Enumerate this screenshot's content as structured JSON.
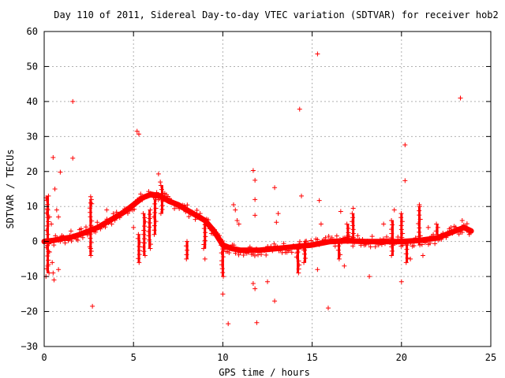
{
  "chart_data": {
    "type": "scatter",
    "title": "Day 110 of 2011, Sidereal Day-to-day VTEC variation (SDTVAR) for receiver hob2",
    "xlabel": "GPS time / hours",
    "ylabel": "SDTVAR / TECUs",
    "xlim": [
      0,
      25
    ],
    "ylim": [
      -30,
      60
    ],
    "x_ticks": [
      "0",
      "5",
      "10",
      "15",
      "20",
      "25"
    ],
    "y_ticks": [
      "60",
      "50",
      "40",
      "30",
      "20",
      "10",
      "0",
      "−10",
      "−20",
      "−30"
    ],
    "grid": true,
    "legend": "none",
    "marker": "+",
    "marker_color": "#ff0000",
    "trend": [
      [
        0.0,
        0.0
      ],
      [
        0.5,
        0.3
      ],
      [
        1.0,
        0.8
      ],
      [
        1.5,
        1.2
      ],
      [
        2.0,
        2.0
      ],
      [
        2.5,
        3.0
      ],
      [
        3.0,
        4.0
      ],
      [
        3.5,
        5.5
      ],
      [
        4.0,
        7.0
      ],
      [
        4.5,
        8.5
      ],
      [
        5.0,
        10.5
      ],
      [
        5.5,
        12.5
      ],
      [
        6.0,
        13.5
      ],
      [
        6.5,
        13.0
      ],
      [
        7.0,
        11.5
      ],
      [
        7.5,
        10.5
      ],
      [
        8.0,
        9.0
      ],
      [
        8.5,
        7.5
      ],
      [
        9.0,
        6.0
      ],
      [
        9.5,
        3.0
      ],
      [
        10.0,
        -1.0
      ],
      [
        10.5,
        -2.0
      ],
      [
        11.0,
        -2.5
      ],
      [
        12.0,
        -2.5
      ],
      [
        13.0,
        -2.0
      ],
      [
        14.0,
        -1.5
      ],
      [
        15.0,
        -1.0
      ],
      [
        16.0,
        0.0
      ],
      [
        17.0,
        0.2
      ],
      [
        18.0,
        0.0
      ],
      [
        19.0,
        0.0
      ],
      [
        20.0,
        0.0
      ],
      [
        21.0,
        0.3
      ],
      [
        22.0,
        1.0
      ],
      [
        23.0,
        3.0
      ],
      [
        23.5,
        4.0
      ],
      [
        23.9,
        3.0
      ]
    ],
    "spikes": [
      {
        "x": 5.3,
        "from": 2,
        "to": -6
      },
      {
        "x": 5.6,
        "from": 8,
        "to": -4
      },
      {
        "x": 5.9,
        "from": 9,
        "to": -2
      },
      {
        "x": 6.2,
        "from": 12,
        "to": 2
      },
      {
        "x": 6.6,
        "from": 16,
        "to": 8
      },
      {
        "x": 8.0,
        "from": 0,
        "to": -5
      },
      {
        "x": 9.0,
        "from": 6,
        "to": -2
      },
      {
        "x": 10.0,
        "from": -1,
        "to": -10
      },
      {
        "x": 14.2,
        "from": -1,
        "to": -9
      },
      {
        "x": 14.6,
        "from": 0,
        "to": -6
      },
      {
        "x": 16.5,
        "from": 0,
        "to": -5
      },
      {
        "x": 17.0,
        "from": 5,
        "to": 0
      },
      {
        "x": 17.3,
        "from": 8,
        "to": 0
      },
      {
        "x": 19.5,
        "from": 6,
        "to": -4
      },
      {
        "x": 20.0,
        "from": 8,
        "to": 0
      },
      {
        "x": 20.3,
        "from": -1,
        "to": -6
      },
      {
        "x": 21.0,
        "from": 10,
        "to": -1
      },
      {
        "x": 22.0,
        "from": 5,
        "to": 2
      },
      {
        "x": 0.2,
        "from": 13,
        "to": -9
      },
      {
        "x": 2.6,
        "from": 12,
        "to": -4
      }
    ],
    "outliers": [
      [
        0.1,
        12.5
      ],
      [
        0.2,
        9.0
      ],
      [
        0.3,
        7.0
      ],
      [
        0.4,
        5.0
      ],
      [
        0.45,
        -6.0
      ],
      [
        0.5,
        -9.0
      ],
      [
        0.55,
        -11.0
      ],
      [
        0.5,
        24.0
      ],
      [
        0.6,
        15.0
      ],
      [
        0.7,
        9.0
      ],
      [
        0.8,
        7.0
      ],
      [
        0.9,
        19.8
      ],
      [
        1.0,
        0.5
      ],
      [
        0.2,
        -7.0
      ],
      [
        0.1,
        -10.0
      ],
      [
        0.3,
        -3.0
      ],
      [
        0.8,
        -8.0
      ],
      [
        1.6,
        40.0
      ],
      [
        1.6,
        23.8
      ],
      [
        1.5,
        3.0
      ],
      [
        2.6,
        12.8
      ],
      [
        2.6,
        11.0
      ],
      [
        2.7,
        -18.5
      ],
      [
        2.6,
        -2.0
      ],
      [
        3.5,
        9.0
      ],
      [
        5.2,
        31.5
      ],
      [
        5.3,
        30.7
      ],
      [
        5.0,
        4.0
      ],
      [
        6.4,
        19.3
      ],
      [
        6.5,
        17.0
      ],
      [
        9.0,
        -5.0
      ],
      [
        10.0,
        -15.0
      ],
      [
        10.3,
        -23.5
      ],
      [
        10.6,
        10.5
      ],
      [
        10.7,
        9.0
      ],
      [
        10.8,
        6.0
      ],
      [
        10.9,
        5.0
      ],
      [
        11.7,
        20.3
      ],
      [
        11.8,
        17.5
      ],
      [
        11.8,
        7.5
      ],
      [
        11.7,
        -12.0
      ],
      [
        11.8,
        -13.5
      ],
      [
        11.9,
        -23.2
      ],
      [
        11.8,
        12.0
      ],
      [
        12.5,
        -11.5
      ],
      [
        12.9,
        15.4
      ],
      [
        12.9,
        -17.0
      ],
      [
        13.0,
        5.5
      ],
      [
        13.1,
        8.0
      ],
      [
        14.3,
        37.8
      ],
      [
        14.4,
        13.0
      ],
      [
        14.2,
        -3.0
      ],
      [
        15.3,
        53.6
      ],
      [
        15.4,
        11.7
      ],
      [
        15.3,
        -8.0
      ],
      [
        15.5,
        5.0
      ],
      [
        15.9,
        -19.0
      ],
      [
        16.6,
        8.6
      ],
      [
        16.8,
        -7.0
      ],
      [
        17.3,
        9.5
      ],
      [
        18.2,
        -10.0
      ],
      [
        19.0,
        5.0
      ],
      [
        19.6,
        9.0
      ],
      [
        20.0,
        -11.5
      ],
      [
        20.2,
        27.6
      ],
      [
        20.2,
        17.4
      ],
      [
        20.5,
        -5.0
      ],
      [
        21.0,
        10.5
      ],
      [
        21.2,
        -4.0
      ],
      [
        21.5,
        4.0
      ],
      [
        23.3,
        41.0
      ],
      [
        23.4,
        6.0
      ],
      [
        23.8,
        2.0
      ]
    ]
  }
}
